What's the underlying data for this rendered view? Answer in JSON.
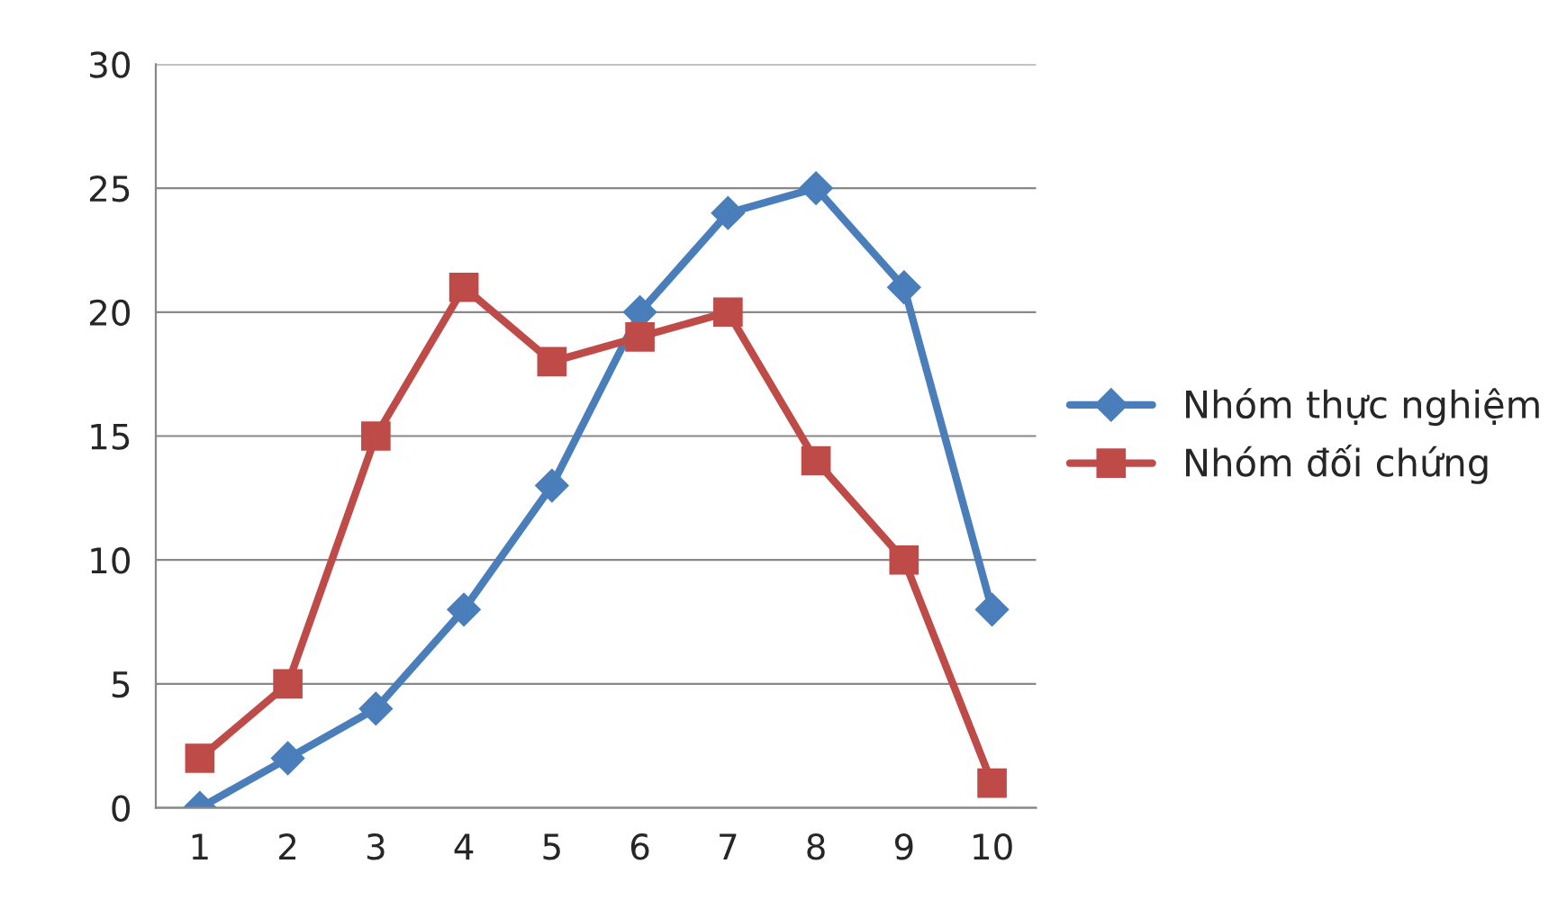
{
  "chart_data": {
    "type": "line",
    "categories": [
      "1",
      "2",
      "3",
      "4",
      "5",
      "6",
      "7",
      "8",
      "9",
      "10"
    ],
    "series": [
      {
        "name": "Nhóm thực nghiệm",
        "color": "#4a7ebb",
        "marker": "diamond",
        "values": [
          0,
          2,
          4,
          8,
          13,
          20,
          24,
          25,
          21,
          8
        ]
      },
      {
        "name": "Nhóm đối chứng",
        "color": "#be4b48",
        "marker": "square",
        "values": [
          2,
          5,
          15,
          21,
          18,
          19,
          20,
          14,
          10,
          1
        ]
      }
    ],
    "ylim": [
      0,
      30
    ],
    "yticks": [
      0,
      5,
      10,
      15,
      20,
      25,
      30
    ],
    "grid": "y",
    "legend": "right"
  }
}
